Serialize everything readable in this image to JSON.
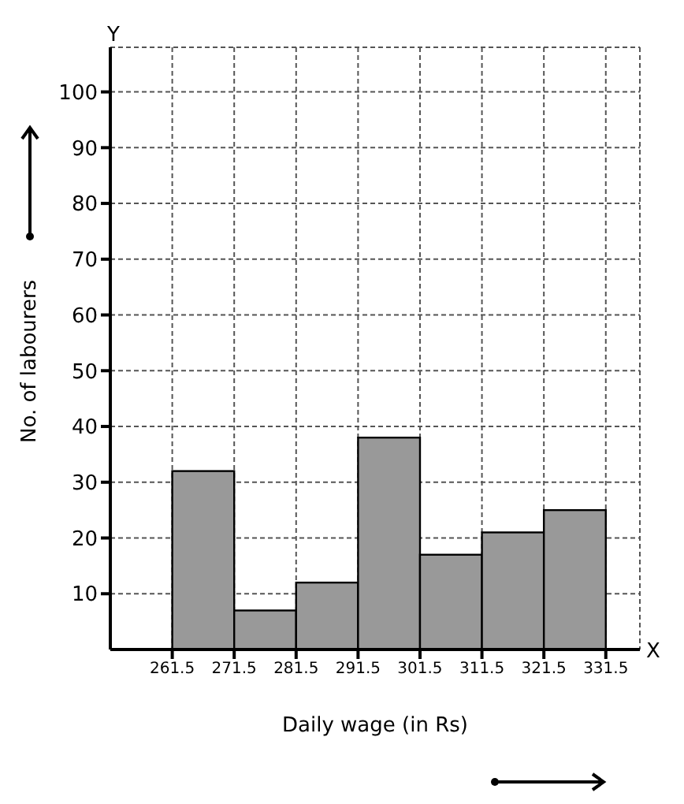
{
  "chart_data": {
    "type": "histogram",
    "xlabel": "Daily wage (in Rs)",
    "ylabel": "No. of labourers",
    "bins": [
      261.5,
      271.5,
      281.5,
      291.5,
      301.5,
      311.5,
      321.5,
      331.5
    ],
    "values": [
      32,
      7,
      12,
      38,
      17,
      21,
      25
    ],
    "color": "#999999",
    "xlim": [
      251.5,
      337
    ],
    "ylim": [
      0,
      108
    ],
    "xticks": [
      261.5,
      271.5,
      281.5,
      291.5,
      301.5,
      311.5,
      321.5,
      331.5
    ],
    "yticks": [
      10,
      20,
      30,
      40,
      50,
      60,
      70,
      80,
      90,
      100
    ],
    "grid": true,
    "annotations": [
      "X",
      "Y"
    ]
  }
}
